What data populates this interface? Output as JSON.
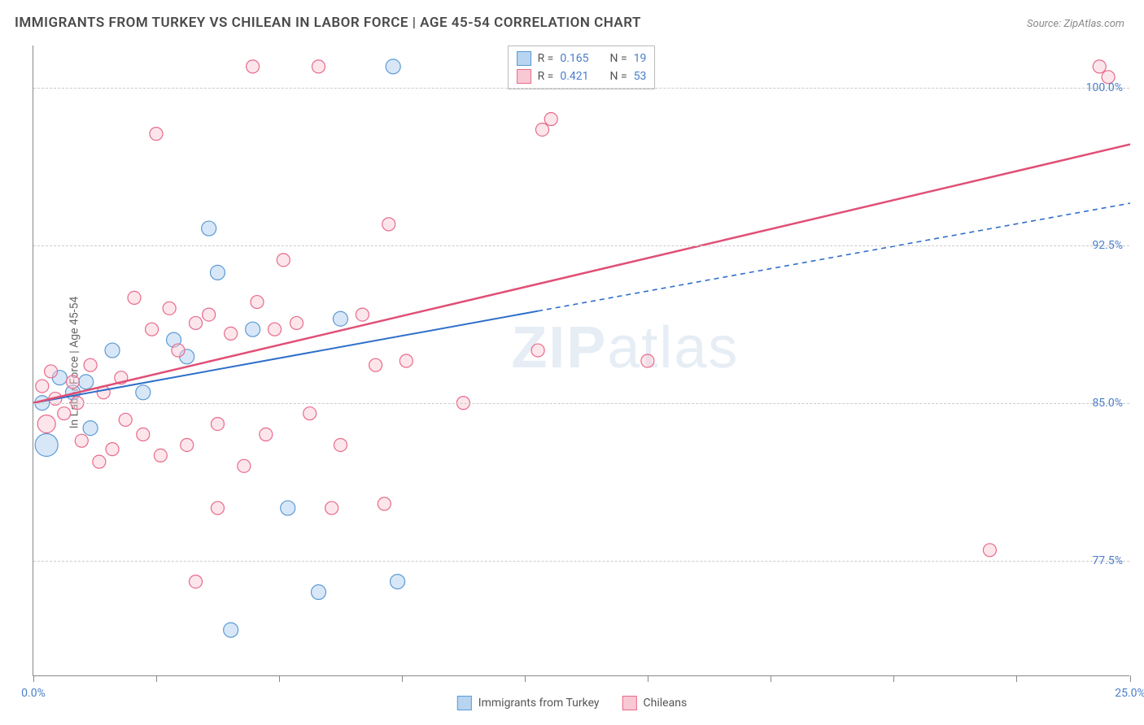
{
  "title": "IMMIGRANTS FROM TURKEY VS CHILEAN IN LABOR FORCE | AGE 45-54 CORRELATION CHART",
  "source": "Source: ZipAtlas.com",
  "ylabel": "In Labor Force | Age 45-54",
  "watermark": "ZIPatlas",
  "chart": {
    "type": "scatter-with-trend",
    "background_color": "#ffffff",
    "grid_color": "#cccccc",
    "axis_color": "#888888",
    "text_color": "#666666",
    "value_color": "#4a7ec9",
    "xlim": [
      0,
      25
    ],
    "ylim": [
      72,
      102
    ],
    "xticks": [
      0,
      2.8,
      5.6,
      8.4,
      11.2,
      14.0,
      16.8,
      19.6,
      22.4,
      25.0
    ],
    "xtick_labels": {
      "0": "0.0%",
      "25": "25.0%"
    },
    "yticks": [
      77.5,
      85.0,
      92.5,
      100.0
    ],
    "ytick_labels": [
      "77.5%",
      "85.0%",
      "92.5%",
      "100.0%"
    ],
    "series": [
      {
        "name": "Immigrants from Turkey",
        "color_fill": "#b8d4f0",
        "color_stroke": "#5a9bd5",
        "fill_opacity": 0.55,
        "marker_r": 9,
        "R": "0.165",
        "N": "19",
        "trend": {
          "x1": 0,
          "y1": 85.0,
          "x2": 25,
          "y2": 94.5,
          "solid_until_x": 11.5,
          "color": "#2e6fc9",
          "width": 2
        },
        "points": [
          {
            "x": 0.2,
            "y": 85.0,
            "r": 9
          },
          {
            "x": 0.3,
            "y": 83.0,
            "r": 14
          },
          {
            "x": 0.6,
            "y": 86.2,
            "r": 9
          },
          {
            "x": 0.9,
            "y": 85.5,
            "r": 9
          },
          {
            "x": 1.2,
            "y": 86.0,
            "r": 9
          },
          {
            "x": 1.3,
            "y": 83.8,
            "r": 9
          },
          {
            "x": 1.8,
            "y": 87.5,
            "r": 9
          },
          {
            "x": 2.5,
            "y": 85.5,
            "r": 9
          },
          {
            "x": 3.2,
            "y": 88.0,
            "r": 9
          },
          {
            "x": 3.5,
            "y": 87.2,
            "r": 9
          },
          {
            "x": 4.0,
            "y": 93.3,
            "r": 9
          },
          {
            "x": 4.2,
            "y": 91.2,
            "r": 9
          },
          {
            "x": 4.5,
            "y": 74.2,
            "r": 9
          },
          {
            "x": 5.0,
            "y": 88.5,
            "r": 9
          },
          {
            "x": 5.8,
            "y": 80.0,
            "r": 9
          },
          {
            "x": 6.5,
            "y": 76.0,
            "r": 9
          },
          {
            "x": 7.0,
            "y": 89.0,
            "r": 9
          },
          {
            "x": 8.2,
            "y": 101.0,
            "r": 9
          },
          {
            "x": 8.3,
            "y": 76.5,
            "r": 9
          }
        ]
      },
      {
        "name": "Chileans",
        "color_fill": "#f8c8d4",
        "color_stroke": "#e86a8a",
        "fill_opacity": 0.45,
        "marker_r": 9,
        "R": "0.421",
        "N": "53",
        "trend": {
          "x1": 0,
          "y1": 85.0,
          "x2": 25,
          "y2": 97.3,
          "solid_until_x": 25,
          "color": "#e04f76",
          "width": 2.5
        },
        "points": [
          {
            "x": 0.2,
            "y": 85.8,
            "r": 8
          },
          {
            "x": 0.3,
            "y": 84.0,
            "r": 11
          },
          {
            "x": 0.4,
            "y": 86.5,
            "r": 8
          },
          {
            "x": 0.5,
            "y": 85.2,
            "r": 8
          },
          {
            "x": 0.7,
            "y": 84.5,
            "r": 8
          },
          {
            "x": 0.9,
            "y": 86.0,
            "r": 8
          },
          {
            "x": 1.0,
            "y": 85.0,
            "r": 8
          },
          {
            "x": 1.1,
            "y": 83.2,
            "r": 8
          },
          {
            "x": 1.3,
            "y": 86.8,
            "r": 8
          },
          {
            "x": 1.5,
            "y": 82.2,
            "r": 8
          },
          {
            "x": 1.6,
            "y": 85.5,
            "r": 8
          },
          {
            "x": 1.8,
            "y": 82.8,
            "r": 8
          },
          {
            "x": 2.0,
            "y": 86.2,
            "r": 8
          },
          {
            "x": 2.1,
            "y": 84.2,
            "r": 8
          },
          {
            "x": 2.3,
            "y": 90.0,
            "r": 8
          },
          {
            "x": 2.5,
            "y": 83.5,
            "r": 8
          },
          {
            "x": 2.7,
            "y": 88.5,
            "r": 8
          },
          {
            "x": 2.9,
            "y": 82.5,
            "r": 8
          },
          {
            "x": 2.8,
            "y": 97.8,
            "r": 8
          },
          {
            "x": 3.1,
            "y": 89.5,
            "r": 8
          },
          {
            "x": 3.3,
            "y": 87.5,
            "r": 8
          },
          {
            "x": 3.5,
            "y": 83.0,
            "r": 8
          },
          {
            "x": 3.7,
            "y": 88.8,
            "r": 8
          },
          {
            "x": 3.7,
            "y": 76.5,
            "r": 8
          },
          {
            "x": 4.0,
            "y": 89.2,
            "r": 8
          },
          {
            "x": 4.2,
            "y": 84.0,
            "r": 8
          },
          {
            "x": 4.2,
            "y": 80.0,
            "r": 8
          },
          {
            "x": 4.5,
            "y": 88.3,
            "r": 8
          },
          {
            "x": 4.8,
            "y": 82.0,
            "r": 8
          },
          {
            "x": 5.0,
            "y": 101.0,
            "r": 8
          },
          {
            "x": 5.1,
            "y": 89.8,
            "r": 8
          },
          {
            "x": 5.3,
            "y": 83.5,
            "r": 8
          },
          {
            "x": 5.5,
            "y": 88.5,
            "r": 8
          },
          {
            "x": 5.7,
            "y": 91.8,
            "r": 8
          },
          {
            "x": 6.0,
            "y": 88.8,
            "r": 8
          },
          {
            "x": 6.3,
            "y": 84.5,
            "r": 8
          },
          {
            "x": 6.5,
            "y": 101.0,
            "r": 8
          },
          {
            "x": 6.8,
            "y": 80.0,
            "r": 8
          },
          {
            "x": 7.0,
            "y": 83.0,
            "r": 8
          },
          {
            "x": 7.5,
            "y": 89.2,
            "r": 8
          },
          {
            "x": 7.8,
            "y": 86.8,
            "r": 8
          },
          {
            "x": 8.0,
            "y": 80.2,
            "r": 8
          },
          {
            "x": 8.1,
            "y": 93.5,
            "r": 8
          },
          {
            "x": 8.5,
            "y": 87.0,
            "r": 8
          },
          {
            "x": 9.8,
            "y": 85.0,
            "r": 8
          },
          {
            "x": 11.0,
            "y": 101.0,
            "r": 8
          },
          {
            "x": 11.5,
            "y": 87.5,
            "r": 8
          },
          {
            "x": 11.6,
            "y": 98.0,
            "r": 8
          },
          {
            "x": 11.8,
            "y": 98.5,
            "r": 8
          },
          {
            "x": 14.0,
            "y": 87.0,
            "r": 8
          },
          {
            "x": 21.8,
            "y": 78.0,
            "r": 8
          },
          {
            "x": 24.3,
            "y": 101.0,
            "r": 8
          },
          {
            "x": 24.5,
            "y": 100.5,
            "r": 8
          }
        ]
      }
    ]
  },
  "legend_top": [
    {
      "swatch_fill": "#b8d4f0",
      "swatch_stroke": "#5a9bd5",
      "r_label": "R =",
      "r_val": "0.165",
      "n_label": "N =",
      "n_val": "19"
    },
    {
      "swatch_fill": "#f8c8d4",
      "swatch_stroke": "#e86a8a",
      "r_label": "R =",
      "r_val": "0.421",
      "n_label": "N =",
      "n_val": "53"
    }
  ],
  "legend_bottom": [
    {
      "swatch_fill": "#b8d4f0",
      "swatch_stroke": "#5a9bd5",
      "label": "Immigrants from Turkey"
    },
    {
      "swatch_fill": "#f8c8d4",
      "swatch_stroke": "#e86a8a",
      "label": "Chileans"
    }
  ]
}
